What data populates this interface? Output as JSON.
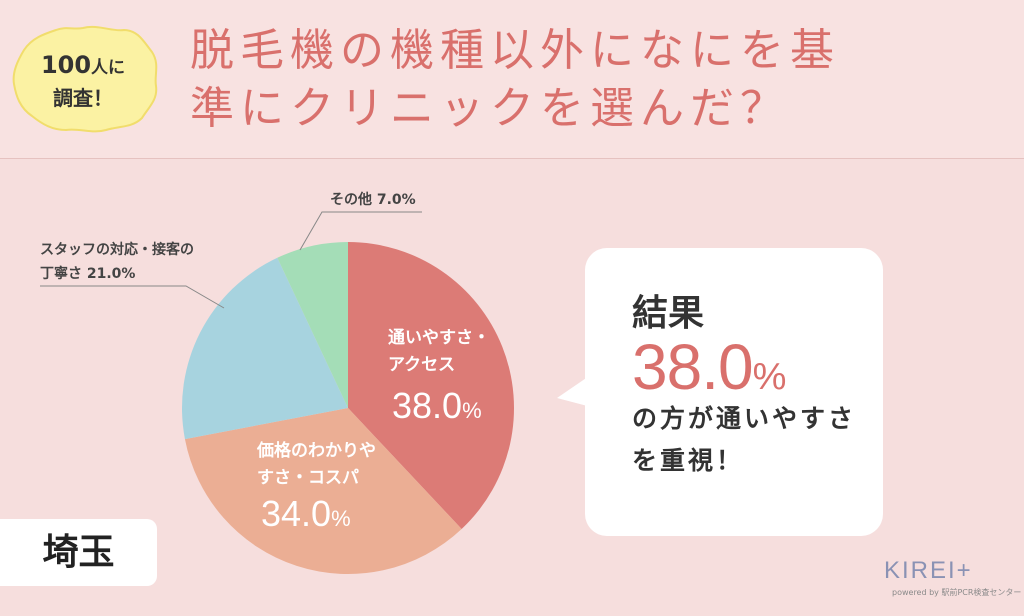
{
  "badge": {
    "line1_num": "100",
    "line1_text": "人に",
    "line2": "調査！"
  },
  "title": {
    "line1": "脱毛機の機種以外になにを基",
    "line2": "準にクリニックを選んだ？"
  },
  "chart_data": {
    "type": "pie",
    "start": "12 o'clock",
    "direction": "clockwise",
    "slices": [
      {
        "label_lines": [
          "通いやすさ・",
          "アクセス"
        ],
        "value": 38.0,
        "value_label": "38.0",
        "unit": "%",
        "color": "#dc7b76",
        "label_position": "inside"
      },
      {
        "label_lines": [
          "価格のわかりや",
          "すさ・コスパ"
        ],
        "value": 34.0,
        "value_label": "34.0",
        "unit": "%",
        "color": "#ebae94",
        "label_position": "inside"
      },
      {
        "label_lines": [
          "スタッフの対応・接客の",
          "丁寧さ 21.0%"
        ],
        "value": 21.0,
        "color": "#a7d3df",
        "label_position": "outside"
      },
      {
        "label_lines": [
          "その他 7.0%"
        ],
        "value": 7.0,
        "color": "#a4ddb7",
        "label_position": "outside"
      }
    ]
  },
  "result": {
    "label": "結果",
    "value": "38.0",
    "unit": "%",
    "desc_line1": "の方が通いやすさ",
    "desc_line2": "を重視！"
  },
  "region": {
    "label": "埼玉"
  },
  "logo": {
    "main": "KIREI+",
    "sub": "powered by 駅前PCR検査センター"
  },
  "colors": {
    "accent": "#d9706c",
    "background": "#f6dedd"
  }
}
